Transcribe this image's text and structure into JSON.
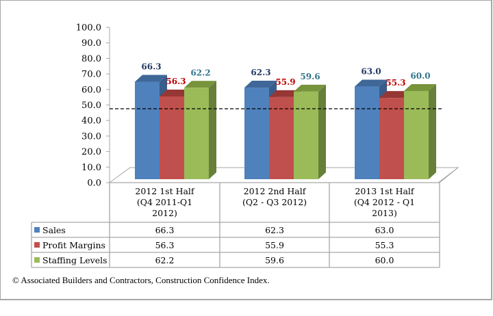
{
  "chart_data": {
    "type": "bar",
    "style": "3d-clustered-column-with-data-table",
    "categories": [
      [
        "2012 1st Half",
        "(Q4 2011-Q1",
        "2012)"
      ],
      [
        "2012 2nd Half",
        "(Q2 - Q3 2012)"
      ],
      [
        "2013 1st Half",
        "(Q4 2012 - Q1",
        "2013)"
      ]
    ],
    "series": [
      {
        "name": "Sales",
        "color": "#4f81bd",
        "side": "#385d8a",
        "top": "#3f6797",
        "label_color": "#1f3864",
        "values": [
          66.3,
          62.3,
          63.0
        ],
        "labels": [
          "66.3",
          "62.3",
          "63.0"
        ]
      },
      {
        "name": "Profit Margins",
        "color": "#c0504d",
        "side": "#8c3836",
        "top": "#953735",
        "label_color": "#c00000",
        "values": [
          56.3,
          55.9,
          55.3
        ],
        "labels": [
          "56.3",
          "55.9",
          "55.3"
        ]
      },
      {
        "name": "Staffing Levels",
        "color": "#9bbb59",
        "side": "#66803a",
        "top": "#77933c",
        "label_color": "#31758a",
        "values": [
          62.2,
          59.6,
          60.0
        ],
        "labels": [
          "62.2",
          "59.6",
          "60.0"
        ]
      }
    ],
    "y_ticks": [
      "100.0",
      "90.0",
      "80.0",
      "70.0",
      "60.0",
      "50.0",
      "40.0",
      "30.0",
      "20.0",
      "10.0",
      "0.0"
    ],
    "ylim": [
      0,
      100
    ],
    "reference_line": {
      "value": 50,
      "style": "dashed"
    },
    "title": "",
    "xlabel": "",
    "ylabel": "",
    "grid": false,
    "legend": "data-table"
  },
  "caption": "© Associated Builders and Contractors, Construction Confidence Index."
}
